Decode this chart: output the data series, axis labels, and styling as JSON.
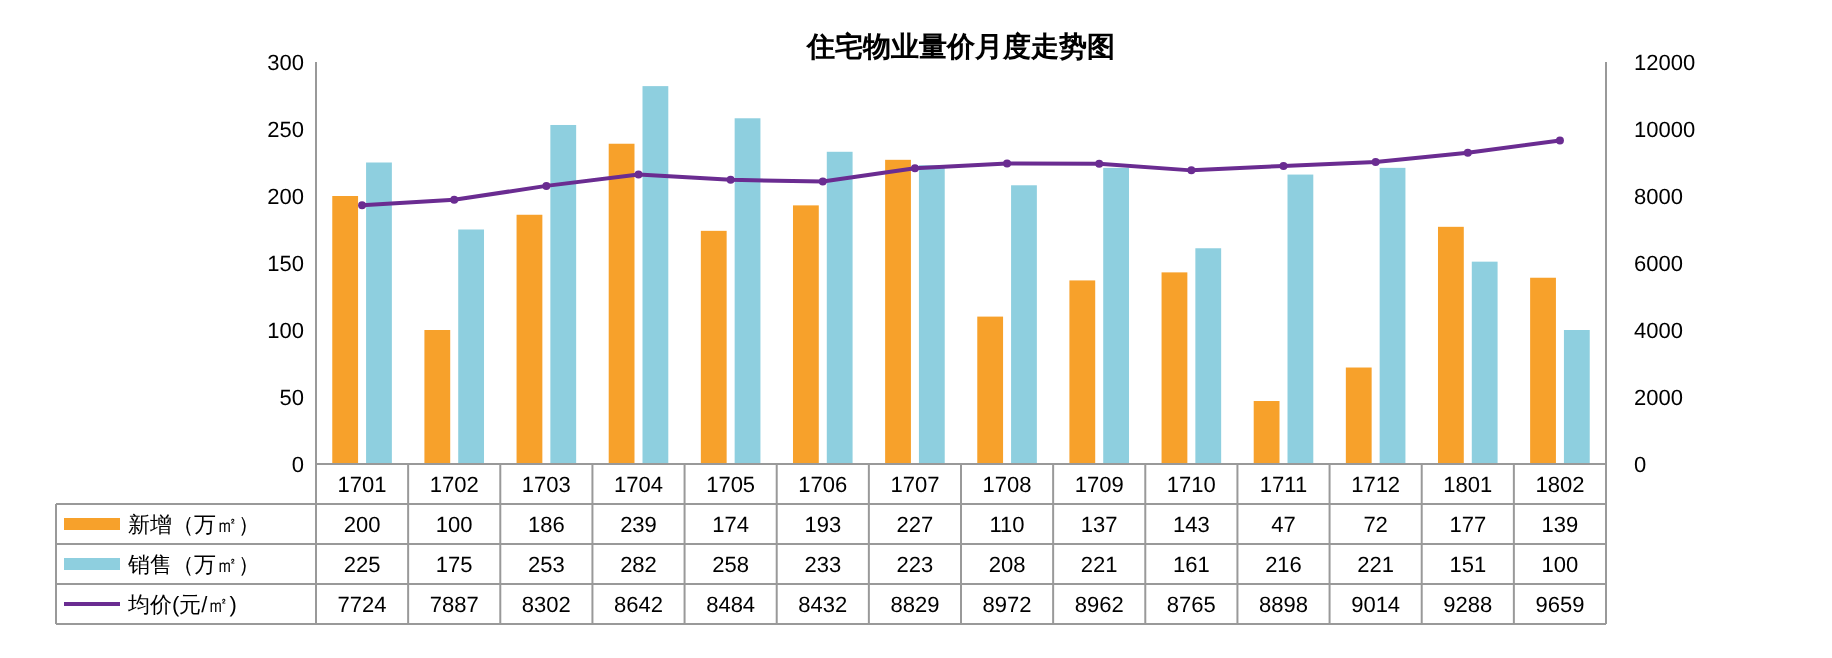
{
  "chart_data": {
    "type": "bar",
    "title": "住宅物业量价月度走势图",
    "categories": [
      "1701",
      "1702",
      "1703",
      "1704",
      "1705",
      "1706",
      "1707",
      "1708",
      "1709",
      "1710",
      "1711",
      "1712",
      "1801",
      "1802"
    ],
    "series": [
      {
        "name": "新增（万㎡）",
        "color": "#f7a12b",
        "values": [
          200,
          100,
          186,
          239,
          174,
          193,
          227,
          110,
          137,
          143,
          47,
          72,
          177,
          139
        ]
      },
      {
        "name": "销售（万㎡）",
        "color": "#8ecfdf",
        "values": [
          225,
          175,
          253,
          282,
          258,
          233,
          223,
          208,
          221,
          161,
          216,
          221,
          151,
          100
        ]
      },
      {
        "name": "均价(元/㎡)",
        "type": "line",
        "axis": "y2",
        "color": "#6a2c91",
        "marker": "circle",
        "values": [
          7724,
          7887,
          8302,
          8642,
          8484,
          8432,
          8829,
          8972,
          8962,
          8765,
          8898,
          9014,
          9288,
          9659
        ]
      }
    ],
    "ylim": [
      0,
      300
    ],
    "yticks": [
      0,
      50,
      100,
      150,
      200,
      250,
      300
    ],
    "y2lim": [
      0,
      12000
    ],
    "y2ticks": [
      0,
      2000,
      4000,
      6000,
      8000,
      10000,
      12000
    ],
    "grid": false,
    "legend": "bottom",
    "data_labels": true
  }
}
